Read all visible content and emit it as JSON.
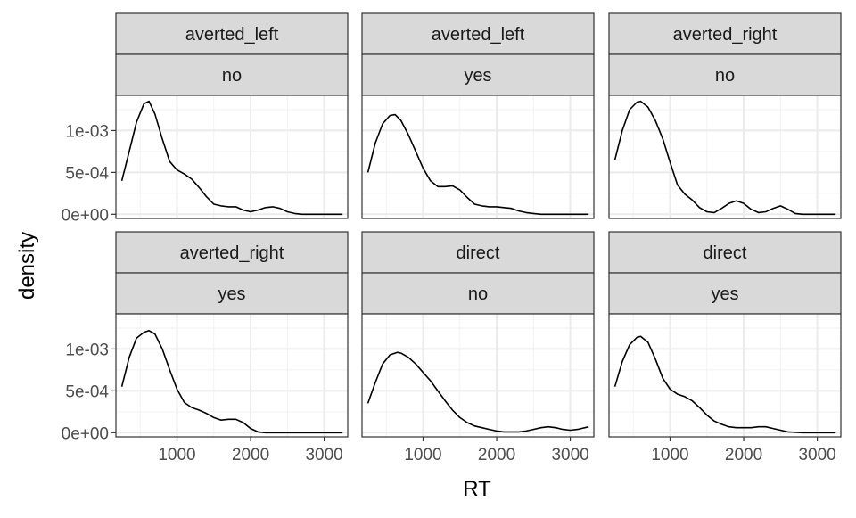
{
  "chart_data": {
    "type": "line",
    "xlabel": "RT",
    "ylabel": "density",
    "xlim": [
      170,
      3320
    ],
    "ylim": [
      -5e-05,
      0.00142
    ],
    "x_ticks": [
      1000,
      2000,
      3000
    ],
    "x_tick_labels": [
      "1000",
      "2000",
      "3000"
    ],
    "y_ticks": [
      0,
      0.0005,
      0.001
    ],
    "y_tick_labels": [
      "0e+00",
      "5e-04",
      "1e-03"
    ],
    "grid": true,
    "facets": [
      {
        "strip_top": "averted_left",
        "strip_bottom": "no",
        "x": [
          250,
          350,
          450,
          550,
          620,
          700,
          800,
          900,
          1000,
          1100,
          1200,
          1300,
          1400,
          1500,
          1600,
          1700,
          1800,
          1900,
          2000,
          2100,
          2200,
          2300,
          2400,
          2500,
          2600,
          2700,
          2800,
          2900,
          3000,
          3100,
          3250
        ],
        "y": [
          0.0004,
          0.00075,
          0.0011,
          0.00132,
          0.00135,
          0.0012,
          0.0009,
          0.00063,
          0.00053,
          0.00048,
          0.00042,
          0.00032,
          0.00021,
          0.00012,
          0.0001,
          9e-05,
          9e-05,
          5e-05,
          3e-05,
          5e-05,
          8e-05,
          9e-05,
          7e-05,
          3e-05,
          1e-05,
          0.0,
          0.0,
          0.0,
          0.0,
          0.0,
          0.0
        ]
      },
      {
        "strip_top": "averted_left",
        "strip_bottom": "yes",
        "x": [
          250,
          350,
          450,
          550,
          620,
          700,
          800,
          900,
          1000,
          1100,
          1200,
          1300,
          1400,
          1500,
          1600,
          1700,
          1800,
          1900,
          2000,
          2100,
          2200,
          2300,
          2400,
          2500,
          2600,
          2800,
          3000,
          3250
        ],
        "y": [
          0.0005,
          0.00085,
          0.00108,
          0.00118,
          0.00119,
          0.00112,
          0.00095,
          0.00075,
          0.00055,
          0.0004,
          0.00033,
          0.00033,
          0.00034,
          0.00029,
          0.0002,
          0.00012,
          0.0001,
          9e-05,
          9e-05,
          8e-05,
          7e-05,
          4e-05,
          2e-05,
          1e-05,
          0.0,
          0.0,
          0.0,
          0.0
        ]
      },
      {
        "strip_top": "averted_right",
        "strip_bottom": "no",
        "x": [
          250,
          350,
          450,
          550,
          600,
          700,
          800,
          900,
          1000,
          1100,
          1200,
          1300,
          1400,
          1500,
          1600,
          1700,
          1800,
          1900,
          2000,
          2100,
          2200,
          2300,
          2400,
          2500,
          2600,
          2700,
          2800,
          3000,
          3250
        ],
        "y": [
          0.00065,
          0.001,
          0.00125,
          0.00134,
          0.00135,
          0.00128,
          0.00112,
          0.0009,
          0.00062,
          0.00035,
          0.00024,
          0.00017,
          8e-05,
          3e-05,
          2e-05,
          7e-05,
          0.00013,
          0.00016,
          0.00013,
          6e-05,
          2e-05,
          3e-05,
          7e-05,
          0.0001,
          6e-05,
          1e-05,
          0.0,
          0.0,
          0.0
        ]
      },
      {
        "strip_top": "averted_right",
        "strip_bottom": "yes",
        "x": [
          250,
          350,
          450,
          550,
          620,
          700,
          800,
          900,
          1000,
          1100,
          1200,
          1300,
          1400,
          1500,
          1600,
          1700,
          1800,
          1900,
          2000,
          2100,
          2200,
          2300,
          2400,
          2500,
          2700,
          3000,
          3250
        ],
        "y": [
          0.00055,
          0.0009,
          0.00113,
          0.0012,
          0.00122,
          0.00118,
          0.001,
          0.00075,
          0.00052,
          0.00036,
          0.0003,
          0.00027,
          0.00023,
          0.00018,
          0.00015,
          0.00016,
          0.00016,
          0.00012,
          5e-05,
          1e-05,
          0.0,
          0.0,
          0.0,
          0.0,
          0.0,
          0.0,
          0.0
        ]
      },
      {
        "strip_top": "direct",
        "strip_bottom": "no",
        "x": [
          250,
          350,
          450,
          550,
          650,
          700,
          800,
          900,
          1000,
          1100,
          1200,
          1300,
          1400,
          1500,
          1600,
          1700,
          1800,
          1900,
          2000,
          2100,
          2200,
          2300,
          2400,
          2500,
          2600,
          2700,
          2800,
          2900,
          3000,
          3100,
          3250
        ],
        "y": [
          0.00035,
          0.0006,
          0.00082,
          0.00093,
          0.00096,
          0.00095,
          0.0009,
          0.00082,
          0.00072,
          0.00062,
          0.0005,
          0.00038,
          0.00027,
          0.00018,
          0.00012,
          8e-05,
          6e-05,
          4e-05,
          2e-05,
          1e-05,
          1e-05,
          1e-05,
          2e-05,
          4e-05,
          6e-05,
          7e-05,
          6e-05,
          4e-05,
          3e-05,
          4e-05,
          7e-05
        ]
      },
      {
        "strip_top": "direct",
        "strip_bottom": "yes",
        "x": [
          250,
          350,
          450,
          550,
          600,
          700,
          800,
          900,
          1000,
          1100,
          1200,
          1300,
          1400,
          1500,
          1600,
          1700,
          1800,
          1900,
          2000,
          2100,
          2200,
          2300,
          2400,
          2500,
          2600,
          2800,
          3000,
          3250
        ],
        "y": [
          0.00055,
          0.00085,
          0.00105,
          0.00114,
          0.00115,
          0.00108,
          0.00088,
          0.00065,
          0.00052,
          0.00046,
          0.00043,
          0.00038,
          0.0003,
          0.00021,
          0.00014,
          0.0001,
          7e-05,
          6e-05,
          6e-05,
          6e-05,
          7e-05,
          7e-05,
          5e-05,
          3e-05,
          1e-05,
          0.0,
          0.0,
          0.0
        ]
      }
    ]
  }
}
